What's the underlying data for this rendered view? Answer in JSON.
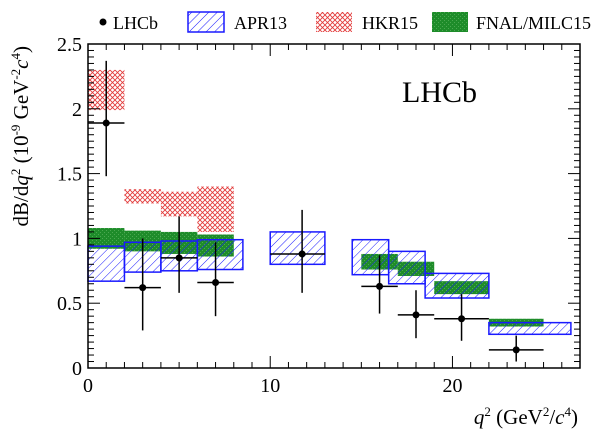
{
  "chart_data": {
    "type": "scatter",
    "title": "",
    "annotation": "LHCb",
    "xlabel": {
      "sym": "q",
      "sup1": "2",
      "open": " (GeV",
      "sup2": "2",
      "mid": "/",
      "c": "c",
      "sup3": "4",
      "close": ")"
    },
    "ylabel": {
      "pre": "dB/d",
      "q": "q",
      "sup1": "2",
      "open": " (10",
      "exp": "-9",
      "gev": " GeV",
      "sup2": "-2",
      "c": "c",
      "sup3": "4",
      "close": ")"
    },
    "xlim": [
      0,
      27
    ],
    "ylim": [
      0,
      2.5
    ],
    "xticks": [
      0,
      10,
      20
    ],
    "yticks": [
      0,
      0.5,
      1,
      1.5,
      2,
      2.5
    ],
    "ytick_labels": [
      "0",
      "0.5",
      "1",
      "1.5",
      "2",
      "2.5"
    ],
    "legend_position": "top",
    "legend": [
      {
        "label": "LHCb",
        "kind": "point"
      },
      {
        "label": "APR13",
        "kind": "hatch-blue"
      },
      {
        "label": "HKR15",
        "kind": "cross-red"
      },
      {
        "label": "FNAL/MILC15",
        "kind": "solid-green"
      }
    ],
    "colors": {
      "apr13": "#1a1aff",
      "hkr15": "#e23b3b",
      "fnal": "#1e8c2a",
      "data": "#000000"
    },
    "series": [
      {
        "name": "LHCb",
        "points": [
          {
            "x": 1,
            "xlo": 0,
            "xhi": 2,
            "y": 1.89,
            "ylo": 1.48,
            "yhi": 2.37
          },
          {
            "x": 3,
            "xlo": 2,
            "xhi": 4,
            "y": 0.62,
            "ylo": 0.29,
            "yhi": 1.0
          },
          {
            "x": 5,
            "xlo": 4,
            "xhi": 6,
            "y": 0.85,
            "ylo": 0.58,
            "yhi": 1.17
          },
          {
            "x": 7,
            "xlo": 6,
            "xhi": 8,
            "y": 0.66,
            "ylo": 0.4,
            "yhi": 0.97
          },
          {
            "x": 11.75,
            "xlo": 10,
            "xhi": 13,
            "y": 0.88,
            "ylo": 0.58,
            "yhi": 1.22
          },
          {
            "x": 16,
            "xlo": 15,
            "xhi": 17,
            "y": 0.63,
            "ylo": 0.42,
            "yhi": 0.87
          },
          {
            "x": 18,
            "xlo": 17,
            "xhi": 19,
            "y": 0.41,
            "ylo": 0.23,
            "yhi": 0.6
          },
          {
            "x": 20.5,
            "xlo": 19,
            "xhi": 22,
            "y": 0.38,
            "ylo": 0.21,
            "yhi": 0.57
          },
          {
            "x": 23.5,
            "xlo": 22,
            "xhi": 25,
            "y": 0.14,
            "ylo": 0.05,
            "yhi": 0.25
          }
        ]
      },
      {
        "name": "APR13",
        "bands": [
          {
            "x0": 0,
            "x1": 2,
            "lo": 0.67,
            "hi": 0.94
          },
          {
            "x0": 2,
            "x1": 4,
            "lo": 0.74,
            "hi": 0.97
          },
          {
            "x0": 4,
            "x1": 6,
            "lo": 0.75,
            "hi": 0.98
          },
          {
            "x0": 6,
            "x1": 8.5,
            "lo": 0.76,
            "hi": 0.99
          },
          {
            "x0": 10,
            "x1": 13,
            "lo": 0.8,
            "hi": 1.05
          },
          {
            "x0": 14.5,
            "x1": 16.5,
            "lo": 0.72,
            "hi": 0.99
          },
          {
            "x0": 16.5,
            "x1": 18.5,
            "lo": 0.65,
            "hi": 0.9
          },
          {
            "x0": 18.5,
            "x1": 22,
            "lo": 0.54,
            "hi": 0.73
          },
          {
            "x0": 22,
            "x1": 26.5,
            "lo": 0.26,
            "hi": 0.35
          }
        ]
      },
      {
        "name": "HKR15",
        "bands": [
          {
            "x0": 0,
            "x1": 2,
            "lo": 1.99,
            "hi": 2.3
          },
          {
            "x0": 2,
            "x1": 4,
            "lo": 1.27,
            "hi": 1.38
          },
          {
            "x0": 4,
            "x1": 6,
            "lo": 1.17,
            "hi": 1.36
          },
          {
            "x0": 6,
            "x1": 8,
            "lo": 1.05,
            "hi": 1.4
          }
        ]
      },
      {
        "name": "FNAL/MILC15",
        "bands": [
          {
            "x0": 0,
            "x1": 2,
            "lo": 0.92,
            "hi": 1.08
          },
          {
            "x0": 2,
            "x1": 4,
            "lo": 0.9,
            "hi": 1.06
          },
          {
            "x0": 4,
            "x1": 6,
            "lo": 0.88,
            "hi": 1.05
          },
          {
            "x0": 6,
            "x1": 8,
            "lo": 0.86,
            "hi": 1.03
          },
          {
            "x0": 15,
            "x1": 17,
            "lo": 0.76,
            "hi": 0.88
          },
          {
            "x0": 17,
            "x1": 19,
            "lo": 0.71,
            "hi": 0.82
          },
          {
            "x0": 19,
            "x1": 22,
            "lo": 0.57,
            "hi": 0.67
          },
          {
            "x0": 22,
            "x1": 25,
            "lo": 0.32,
            "hi": 0.38
          }
        ]
      }
    ]
  }
}
